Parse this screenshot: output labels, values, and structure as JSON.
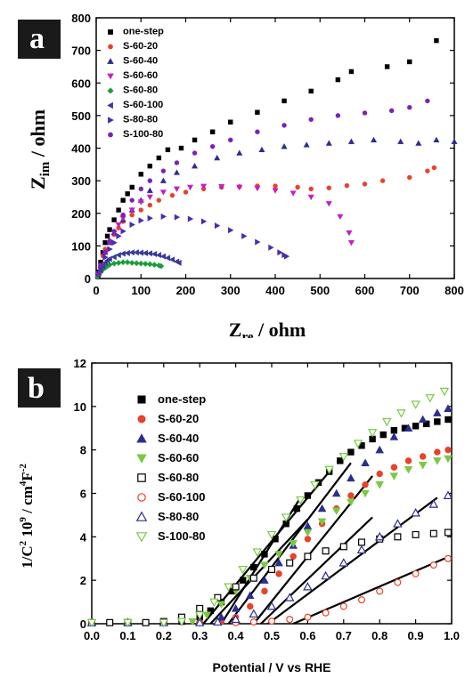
{
  "panels": {
    "a": {
      "label": "a"
    },
    "b": {
      "label": "b"
    }
  },
  "chart_data": [
    {
      "type": "scatter",
      "panel": "a",
      "xlabel": "Z",
      "xlabel_sub": "re",
      "xlabel_rest": " / ohm",
      "ylabel": "Z",
      "ylabel_sub": "im",
      "ylabel_rest": " / ohm",
      "xlim": [
        0,
        800
      ],
      "ylim": [
        0,
        800
      ],
      "xticks": [
        0,
        100,
        200,
        300,
        400,
        500,
        600,
        700,
        800
      ],
      "yticks": [
        0,
        100,
        200,
        300,
        400,
        500,
        600,
        700,
        800
      ],
      "legend_position": "top-left",
      "series": [
        {
          "name": "one-step",
          "color": "#000000",
          "marker": "square",
          "filled": true,
          "x": [
            5,
            10,
            15,
            20,
            25,
            30,
            40,
            50,
            60,
            70,
            80,
            100,
            120,
            140,
            160,
            190,
            220,
            260,
            300,
            360,
            420,
            480,
            540,
            570,
            650,
            700,
            760
          ],
          "y": [
            20,
            50,
            80,
            110,
            130,
            150,
            180,
            210,
            240,
            260,
            280,
            320,
            345,
            370,
            395,
            400,
            425,
            450,
            480,
            510,
            545,
            575,
            610,
            635,
            650,
            665,
            730
          ]
        },
        {
          "name": "S-60-20",
          "color": "#e8412c",
          "marker": "circle",
          "filled": true,
          "x": [
            5,
            10,
            15,
            20,
            30,
            40,
            50,
            60,
            80,
            100,
            120,
            140,
            170,
            200,
            240,
            280,
            320,
            360,
            400,
            450,
            480,
            520,
            560,
            600,
            640,
            700,
            740,
            755
          ],
          "y": [
            15,
            40,
            70,
            90,
            115,
            135,
            155,
            175,
            195,
            210,
            225,
            240,
            255,
            265,
            275,
            280,
            282,
            284,
            284,
            280,
            275,
            278,
            285,
            290,
            300,
            310,
            330,
            340
          ]
        },
        {
          "name": "S-60-40",
          "color": "#2b2d8f",
          "marker": "triangle-up",
          "filled": true,
          "x": [
            5,
            10,
            20,
            30,
            40,
            60,
            80,
            100,
            120,
            150,
            180,
            220,
            270,
            320,
            370,
            420,
            470,
            520,
            570,
            620,
            680,
            720,
            760,
            800
          ],
          "y": [
            15,
            40,
            80,
            110,
            140,
            180,
            210,
            240,
            270,
            300,
            325,
            345,
            370,
            385,
            395,
            405,
            410,
            415,
            420,
            425,
            420,
            415,
            425,
            420
          ]
        },
        {
          "name": "S-60-60",
          "color": "#c41ec4",
          "marker": "triangle-down",
          "filled": true,
          "x": [
            5,
            10,
            20,
            30,
            40,
            50,
            60,
            80,
            100,
            120,
            150,
            180,
            210,
            240,
            280,
            320,
            360,
            400,
            440,
            480,
            520,
            545,
            565,
            570
          ],
          "y": [
            15,
            40,
            80,
            110,
            140,
            165,
            185,
            210,
            235,
            250,
            265,
            275,
            280,
            283,
            282,
            280,
            277,
            270,
            262,
            250,
            230,
            190,
            140,
            110
          ]
        },
        {
          "name": "S-60-80",
          "color": "#1a9e3c",
          "marker": "diamond",
          "filled": true,
          "x": [
            3,
            6,
            10,
            15,
            20,
            25,
            30,
            40,
            50,
            60,
            70,
            80,
            90,
            100,
            110,
            120,
            130,
            140,
            145
          ],
          "y": [
            5,
            12,
            20,
            28,
            33,
            38,
            42,
            46,
            48,
            50,
            50,
            48,
            47,
            46,
            45,
            44,
            42,
            40,
            38
          ]
        },
        {
          "name": "S-60-100",
          "color": "#3a3a9a",
          "marker": "triangle-left",
          "filled": true,
          "x": [
            5,
            10,
            15,
            20,
            25,
            30,
            40,
            50,
            60,
            70,
            80,
            90,
            100,
            110,
            120,
            130,
            140,
            150,
            160,
            170,
            180,
            185
          ],
          "y": [
            10,
            25,
            38,
            48,
            55,
            60,
            66,
            72,
            76,
            78,
            80,
            80,
            79,
            78,
            77,
            75,
            72,
            68,
            63,
            58,
            52,
            48
          ]
        },
        {
          "name": "S-80-80",
          "color": "#4a2bb0",
          "marker": "triangle-right",
          "filled": true,
          "x": [
            5,
            10,
            20,
            30,
            40,
            50,
            60,
            80,
            100,
            120,
            150,
            180,
            210,
            240,
            270,
            300,
            330,
            360,
            390,
            410,
            420,
            425
          ],
          "y": [
            15,
            35,
            65,
            90,
            110,
            130,
            145,
            165,
            178,
            185,
            190,
            188,
            183,
            175,
            162,
            148,
            130,
            112,
            95,
            80,
            72,
            68
          ]
        },
        {
          "name": "S-100-80",
          "color": "#7a22b8",
          "marker": "circle",
          "filled": true,
          "x": [
            5,
            10,
            20,
            30,
            40,
            60,
            80,
            100,
            120,
            150,
            180,
            220,
            260,
            300,
            360,
            420,
            480,
            540,
            600,
            660,
            700,
            740
          ],
          "y": [
            15,
            40,
            80,
            115,
            145,
            195,
            240,
            275,
            300,
            330,
            355,
            385,
            405,
            425,
            450,
            470,
            488,
            500,
            508,
            515,
            525,
            545
          ]
        }
      ]
    },
    {
      "type": "scatter",
      "panel": "b",
      "xlabel": "Potential / V vs RHE",
      "ylabel": "1/C",
      "ylabel_sup": "2",
      "ylabel_mid": " 10",
      "ylabel_sup2": "9",
      "ylabel_mid2": " / cm",
      "ylabel_sup3": "4",
      "ylabel_mid3": "F",
      "ylabel_sup4": "-2",
      "xlim": [
        0.0,
        1.0
      ],
      "ylim": [
        0,
        12
      ],
      "xticks": [
        0.0,
        0.1,
        0.2,
        0.3,
        0.4,
        0.5,
        0.6,
        0.7,
        0.8,
        0.9,
        1.0
      ],
      "yticks": [
        0,
        2,
        4,
        6,
        8,
        10,
        12
      ],
      "legend_position": "left",
      "series": [
        {
          "name": "one-step",
          "color": "#000000",
          "marker": "square",
          "filled": true,
          "x": [
            0.0,
            0.05,
            0.1,
            0.15,
            0.2,
            0.25,
            0.3,
            0.33,
            0.36,
            0.39,
            0.42,
            0.45,
            0.48,
            0.51,
            0.54,
            0.57,
            0.6,
            0.63,
            0.66,
            0.69,
            0.72,
            0.75,
            0.78,
            0.81,
            0.84,
            0.87,
            0.9,
            0.93,
            0.96,
            0.99
          ],
          "y": [
            0.05,
            0.05,
            0.05,
            0.05,
            0.05,
            0.1,
            0.3,
            0.6,
            1.0,
            1.5,
            2.0,
            2.6,
            3.2,
            3.9,
            4.6,
            5.3,
            5.9,
            6.5,
            7.0,
            7.5,
            7.9,
            8.2,
            8.5,
            8.7,
            8.9,
            9.0,
            9.1,
            9.2,
            9.3,
            9.4
          ]
        },
        {
          "name": "S-60-20",
          "color": "#e8412c",
          "marker": "circle",
          "filled": true,
          "x": [
            0.0,
            0.1,
            0.2,
            0.3,
            0.36,
            0.4,
            0.44,
            0.48,
            0.52,
            0.56,
            0.6,
            0.64,
            0.68,
            0.72,
            0.76,
            0.8,
            0.84,
            0.88,
            0.92,
            0.96,
            0.99
          ],
          "y": [
            0.05,
            0.05,
            0.05,
            0.05,
            0.1,
            0.3,
            0.8,
            1.5,
            2.3,
            3.1,
            3.9,
            4.6,
            5.3,
            5.9,
            6.4,
            6.9,
            7.2,
            7.5,
            7.7,
            7.9,
            8.0
          ]
        },
        {
          "name": "S-60-40",
          "color": "#2b2d8f",
          "marker": "triangle-up",
          "filled": true,
          "x": [
            0.0,
            0.1,
            0.2,
            0.3,
            0.36,
            0.4,
            0.44,
            0.48,
            0.52,
            0.56,
            0.6,
            0.64,
            0.68,
            0.72,
            0.76,
            0.8,
            0.84,
            0.88,
            0.92,
            0.96,
            0.99
          ],
          "y": [
            0.05,
            0.05,
            0.05,
            0.1,
            0.3,
            0.7,
            1.3,
            2.0,
            2.8,
            3.6,
            4.5,
            5.3,
            6.0,
            6.7,
            7.4,
            8.0,
            8.6,
            9.0,
            9.4,
            9.7,
            9.9
          ]
        },
        {
          "name": "S-60-60",
          "color": "#7ac943",
          "marker": "triangle-down",
          "filled": true,
          "x": [
            0.0,
            0.1,
            0.2,
            0.28,
            0.32,
            0.36,
            0.4,
            0.44,
            0.48,
            0.52,
            0.56,
            0.6,
            0.64,
            0.68,
            0.72,
            0.76,
            0.8,
            0.84,
            0.88,
            0.92,
            0.96,
            0.99
          ],
          "y": [
            0.05,
            0.05,
            0.05,
            0.1,
            0.4,
            0.9,
            1.5,
            2.1,
            2.7,
            3.2,
            3.7,
            4.2,
            4.7,
            5.2,
            5.6,
            6.0,
            6.4,
            6.8,
            7.1,
            7.3,
            7.5,
            7.6
          ]
        },
        {
          "name": "S-60-80",
          "color": "#000000",
          "marker": "square",
          "filled": false,
          "x": [
            0.0,
            0.05,
            0.1,
            0.15,
            0.2,
            0.25,
            0.3,
            0.35,
            0.4,
            0.45,
            0.5,
            0.55,
            0.6,
            0.65,
            0.7,
            0.75,
            0.8,
            0.85,
            0.9,
            0.95,
            0.99
          ],
          "y": [
            0.05,
            0.05,
            0.05,
            0.05,
            0.1,
            0.3,
            0.7,
            1.2,
            1.7,
            2.1,
            2.5,
            2.8,
            3.1,
            3.35,
            3.55,
            3.75,
            3.9,
            4.0,
            4.1,
            4.15,
            4.2
          ]
        },
        {
          "name": "S-60-100",
          "color": "#e8412c",
          "marker": "circle",
          "filled": false,
          "x": [
            0.0,
            0.1,
            0.2,
            0.3,
            0.4,
            0.45,
            0.5,
            0.55,
            0.6,
            0.65,
            0.7,
            0.75,
            0.8,
            0.85,
            0.9,
            0.95,
            0.99
          ],
          "y": [
            0.05,
            0.05,
            0.05,
            0.05,
            0.05,
            0.08,
            0.12,
            0.2,
            0.3,
            0.5,
            0.8,
            1.1,
            1.5,
            1.9,
            2.3,
            2.7,
            3.0
          ]
        },
        {
          "name": "S-80-80",
          "color": "#2b2d8f",
          "marker": "triangle-up",
          "filled": false,
          "x": [
            0.0,
            0.1,
            0.2,
            0.3,
            0.35,
            0.4,
            0.45,
            0.5,
            0.55,
            0.6,
            0.65,
            0.7,
            0.75,
            0.8,
            0.85,
            0.9,
            0.95,
            0.99
          ],
          "y": [
            0.05,
            0.05,
            0.05,
            0.05,
            0.08,
            0.2,
            0.45,
            0.8,
            1.2,
            1.7,
            2.2,
            2.8,
            3.4,
            4.0,
            4.6,
            5.1,
            5.5,
            5.9
          ]
        },
        {
          "name": "S-100-80",
          "color": "#7ac943",
          "marker": "triangle-down",
          "filled": false,
          "x": [
            0.0,
            0.1,
            0.2,
            0.25,
            0.3,
            0.34,
            0.38,
            0.42,
            0.46,
            0.5,
            0.54,
            0.58,
            0.62,
            0.66,
            0.7,
            0.74,
            0.78,
            0.82,
            0.86,
            0.9,
            0.94,
            0.98
          ],
          "y": [
            0.05,
            0.05,
            0.05,
            0.1,
            0.4,
            1.0,
            1.7,
            2.5,
            3.3,
            4.1,
            4.9,
            5.7,
            6.4,
            7.1,
            7.7,
            8.3,
            8.8,
            9.3,
            9.7,
            10.1,
            10.4,
            10.7
          ]
        }
      ],
      "fit_lines": [
        {
          "x": [
            0.31,
            0.66
          ],
          "y": [
            0,
            7.0
          ]
        },
        {
          "x": [
            0.33,
            0.6
          ],
          "y": [
            0,
            4.8
          ]
        },
        {
          "x": [
            0.36,
            0.58
          ],
          "y": [
            0,
            5.8
          ]
        },
        {
          "x": [
            0.45,
            0.78
          ],
          "y": [
            0,
            6.8
          ]
        },
        {
          "x": [
            0.47,
            0.78
          ],
          "y": [
            0,
            4.9
          ]
        },
        {
          "x": [
            0.56,
            0.98
          ],
          "y": [
            0,
            3.0
          ]
        },
        {
          "x": [
            0.49,
            0.96
          ],
          "y": [
            0,
            5.8
          ]
        },
        {
          "x": [
            0.38,
            0.72
          ],
          "y": [
            0,
            7.4
          ]
        }
      ]
    }
  ]
}
